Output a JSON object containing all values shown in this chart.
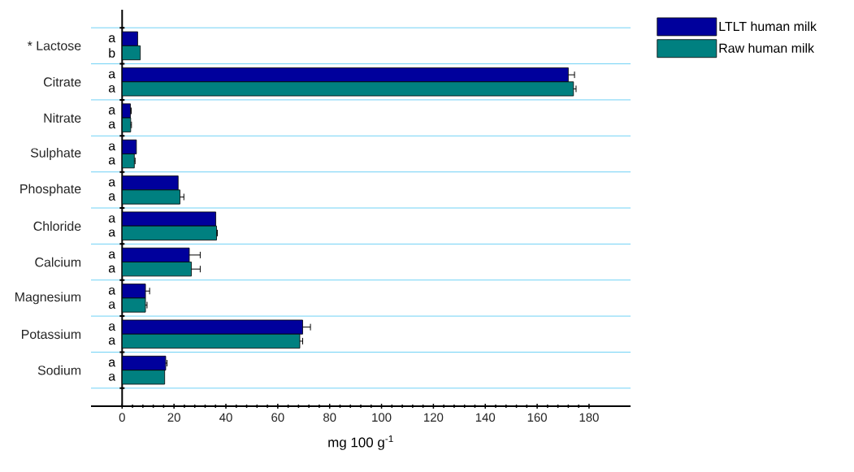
{
  "chart_data": {
    "type": "bar",
    "orientation": "horizontal",
    "xlabel": "mg 100 g$^{-1}$",
    "categories": [
      "* Lactose",
      "Citrate",
      "Nitrate",
      "Sulphate",
      "Phosphate",
      "Chloride",
      "Calcium",
      "Magnesium",
      "Potassium",
      "Sodium"
    ],
    "series": [
      {
        "name": "LTLT human milk",
        "color": "#00009c",
        "values": [
          6,
          172,
          3.2,
          5.5,
          21.6,
          36.1,
          25.9,
          9,
          69.6,
          16.8
        ],
        "errors": [
          null,
          2.4,
          0.3,
          null,
          null,
          null,
          4.2,
          1.6,
          3,
          0.5
        ],
        "value_labels": [
          "a",
          "a",
          "a",
          "a",
          "a",
          "a",
          "a",
          "a",
          "a",
          "a"
        ]
      },
      {
        "name": "Raw human milk",
        "color": "#008080",
        "values": [
          7,
          174,
          3.3,
          4.7,
          22.3,
          36.4,
          26.7,
          9,
          68.5,
          16.4
        ],
        "errors": [
          null,
          1,
          0.3,
          0.3,
          1.5,
          0.3,
          3.4,
          0.6,
          1.1,
          null
        ],
        "value_labels": [
          "b",
          "a",
          "a",
          "a",
          "a",
          "a",
          "a",
          "a",
          "a",
          "a"
        ]
      }
    ],
    "xlim": [
      -12,
      196
    ],
    "xticks": [
      0,
      20,
      40,
      60,
      80,
      100,
      120,
      140,
      160,
      180
    ],
    "grid": "y",
    "legend": "top right"
  }
}
